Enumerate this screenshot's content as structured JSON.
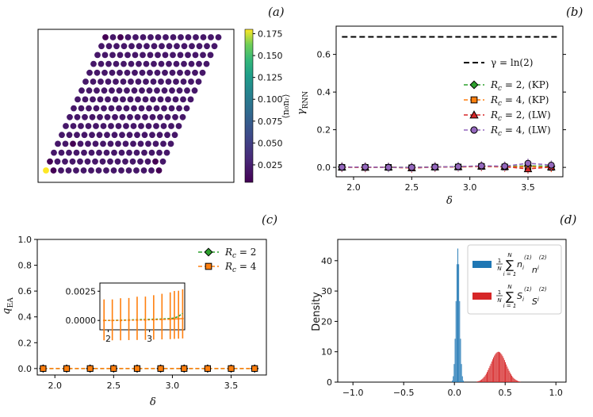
{
  "colors": {
    "green": "#2ca02c",
    "orange": "#ff7f0e",
    "red": "#d62728",
    "purple": "#9467bd",
    "blue": "#1f77b4",
    "lattice_bg": "#440154",
    "lattice_hot": "#fde725",
    "lattice_mid": "#31688e"
  },
  "chart_data": [
    {
      "type": "heatmap",
      "panel_label": "(a)",
      "colorbar_label": "⟨n₀nᵣ⟩",
      "colorbar_ticks": [
        "0.175",
        "0.150",
        "0.125",
        "0.100",
        "0.075",
        "0.050",
        "0.025"
      ],
      "colorbar_tick_values": [
        0.175,
        0.15,
        0.125,
        0.1,
        0.075,
        0.05,
        0.025
      ],
      "clim": [
        0.005,
        0.18
      ],
      "lattice": {
        "rows": 16,
        "cols": 16,
        "shape": "parallelogram"
      },
      "special_sites": [
        {
          "row": 0,
          "col": 0,
          "value": 0.18
        },
        {
          "row": 0,
          "col": 1,
          "value": 0.005
        },
        {
          "row": 1,
          "col": 0,
          "value": 0.005
        },
        {
          "row": 0,
          "col": 15,
          "value": 0.005
        },
        {
          "row": 15,
          "col": 0,
          "value": 0.005
        },
        {
          "row": 15,
          "col": 2,
          "value": 0.005
        },
        {
          "row": 1,
          "col": 14,
          "value": 0.005
        },
        {
          "row": 3,
          "col": 2,
          "value": 0.005
        }
      ],
      "background_value": 0.02
    },
    {
      "type": "line",
      "panel_label": "(b)",
      "xlabel": "δ",
      "ylabel": "γRNN",
      "xlim": [
        1.85,
        3.8
      ],
      "ylim": [
        -0.05,
        0.75
      ],
      "xticks": [
        "2.0",
        "2.5",
        "3.0",
        "3.5"
      ],
      "xtick_values": [
        2.0,
        2.5,
        3.0,
        3.5
      ],
      "yticks": [
        "0.0",
        "0.2",
        "0.4",
        "0.6"
      ],
      "ytick_values": [
        0.0,
        0.2,
        0.4,
        0.6
      ],
      "x": [
        1.9,
        2.1,
        2.3,
        2.5,
        2.7,
        2.9,
        3.1,
        3.3,
        3.5,
        3.7
      ],
      "reference_line": {
        "name": "γ = ln(2)",
        "value": 0.693
      },
      "series": [
        {
          "name": "R_c = 2, (KP)",
          "label_main": "R",
          "label_sub": "c",
          "label_rest": " = 2, (KP)",
          "marker": "diamond",
          "color_key": "green",
          "values": [
            0.002,
            0.001,
            0.001,
            0.0,
            0.003,
            0.004,
            0.007,
            0.005,
            0.008,
            0.006
          ]
        },
        {
          "name": "R_c = 4, (KP)",
          "label_main": "R",
          "label_sub": "c",
          "label_rest": " = 4, (KP)",
          "marker": "square",
          "color_key": "orange",
          "values": [
            0.0,
            0.0,
            0.0,
            -0.002,
            0.001,
            0.002,
            0.005,
            0.002,
            0.004,
            0.0
          ]
        },
        {
          "name": "R_c = 2, (LW)",
          "label_main": "R",
          "label_sub": "c",
          "label_rest": " = 2, (LW)",
          "marker": "triangle",
          "color_key": "red",
          "values": [
            0.001,
            0.0,
            0.001,
            -0.003,
            0.002,
            0.003,
            0.006,
            0.004,
            -0.008,
            0.002
          ]
        },
        {
          "name": "R_c = 4, (LW)",
          "label_main": "R",
          "label_sub": "c",
          "label_rest": " = 4, (LW)",
          "marker": "circle",
          "color_key": "purple",
          "values": [
            0.001,
            0.002,
            0.0,
            0.0,
            0.002,
            0.004,
            0.008,
            0.006,
            0.022,
            0.012
          ]
        }
      ]
    },
    {
      "type": "line",
      "panel_label": "(c)",
      "xlabel": "δ",
      "ylabel": "qEA",
      "xlim": [
        1.85,
        3.8
      ],
      "ylim": [
        -0.05,
        1.0
      ],
      "xticks": [
        "2.0",
        "2.5",
        "3.0",
        "3.5"
      ],
      "xtick_values": [
        2.0,
        2.5,
        3.0,
        3.5
      ],
      "yticks": [
        "0.0",
        "0.2",
        "0.4",
        "0.6",
        "0.8",
        "1.0"
      ],
      "ytick_values": [
        0.0,
        0.2,
        0.4,
        0.6,
        0.8,
        1.0
      ],
      "x": [
        1.9,
        2.1,
        2.3,
        2.5,
        2.7,
        2.9,
        3.1,
        3.3,
        3.5,
        3.7
      ],
      "series": [
        {
          "name": "R_c = 2",
          "label_main": "R",
          "label_sub": "c",
          "label_rest": " = 2",
          "marker": "diamond",
          "color_key": "green",
          "values": [
            0.0,
            0.0,
            0.0,
            0.0,
            0.0,
            0.0,
            0.0,
            0.0,
            0.0,
            0.0
          ]
        },
        {
          "name": "R_c = 4",
          "label_main": "R",
          "label_sub": "c",
          "label_rest": " = 4",
          "marker": "square",
          "color_key": "orange",
          "values": [
            0.0,
            0.0,
            0.0,
            0.0,
            0.0,
            0.0,
            0.0,
            0.0,
            0.0,
            0.0
          ]
        }
      ],
      "inset": {
        "xlim": [
          1.8,
          3.85
        ],
        "ylim": [
          -0.0008,
          0.0032
        ],
        "xticks": [
          "2",
          "3"
        ],
        "xtick_values": [
          2,
          3
        ],
        "yticks": [
          "0.0025",
          "0.0000"
        ],
        "ytick_values": [
          0.0025,
          0.0
        ],
        "x": [
          1.9,
          2.1,
          2.3,
          2.5,
          2.7,
          2.9,
          3.1,
          3.3,
          3.5,
          3.6,
          3.7,
          3.8
        ],
        "series_rc2": [
          0.0,
          0.0,
          2e-05,
          4e-05,
          6e-05,
          8e-05,
          0.0001,
          0.00012,
          0.00016,
          0.0002,
          0.00035,
          0.0006
        ],
        "series_rc4": [
          0.0,
          0.0,
          0.0,
          2e-05,
          3e-05,
          4e-05,
          6e-05,
          8e-05,
          0.0001,
          0.00012,
          0.00014,
          0.00016
        ],
        "error_hi": [
          0.0018,
          0.0018,
          0.0019,
          0.0019,
          0.002,
          0.002,
          0.0021,
          0.0022,
          0.0023,
          0.0024,
          0.0024,
          0.0025
        ],
        "error_lo": [
          0.0017,
          0.0017,
          0.0017,
          0.0017,
          0.0017,
          0.0017,
          0.0017,
          0.0017,
          0.0017,
          0.0017,
          0.0017,
          0.0017
        ]
      }
    },
    {
      "type": "bar",
      "panel_label": "(d)",
      "ylabel": "Density",
      "xlim": [
        -1.15,
        1.1
      ],
      "ylim": [
        0,
        47
      ],
      "xticks": [
        "−1.0",
        "−0.5",
        "0.0",
        "0.5",
        "1.0"
      ],
      "xtick_values": [
        -1.0,
        -0.5,
        0.0,
        0.5,
        1.0
      ],
      "yticks": [
        "0",
        "10",
        "20",
        "30",
        "40"
      ],
      "ytick_values": [
        0,
        10,
        20,
        30,
        40
      ],
      "series": [
        {
          "name": "1/N Σ n_i^(1) n_i^(2)",
          "color_key": "blue",
          "label_sym": "n",
          "center": 0.03,
          "width": 0.018,
          "peak": 44
        },
        {
          "name": "1/N Σ S_i^(1) S_i^(2)",
          "color_key": "red",
          "label_sym": "S",
          "center": 0.43,
          "width": 0.075,
          "peak": 10
        }
      ],
      "legend_frac": {
        "num": "1",
        "den": "N",
        "sum_top": "N",
        "sum_bottom": "i = 1",
        "sup": "(1)",
        "sup2": "(2)",
        "sub": "i"
      }
    }
  ]
}
